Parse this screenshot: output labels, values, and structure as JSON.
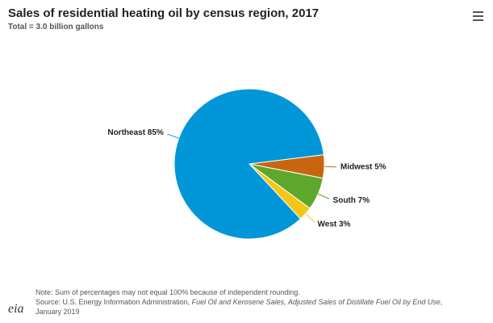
{
  "chart_data": {
    "type": "pie",
    "title": "Sales of residential heating oil by census region, 2017",
    "subtitle": "Total = 3.0 billion gallons",
    "values": [
      5,
      7,
      3,
      85
    ],
    "value_labels": [
      "Midwest 5%",
      "South 7%",
      "West 3%",
      "Northeast 85%"
    ],
    "colors": [
      "#c9650f",
      "#5da82c",
      "#f5c518",
      "#0096d7"
    ],
    "note": "Note: Sum of percentages may not equal 100% because of independent rounding.",
    "source": [
      "Source: U.S. Energy Information Administration, ",
      "Fuel Oil and Kerosene Sales, Adjusted Sales of Distillate Fuel Oil by End Use",
      ", January 2019"
    ]
  },
  "logo": "eia"
}
